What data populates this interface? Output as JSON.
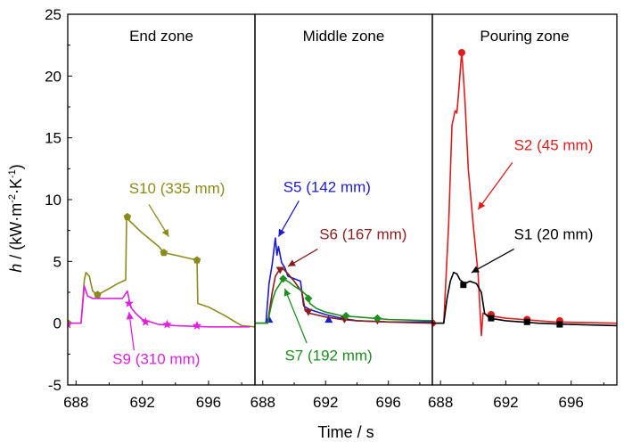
{
  "chart_data": {
    "type": "line",
    "ylabel_parts": {
      "h": "h",
      "rest": " / (kW·m",
      "exp1": "-2",
      "mid": "·K",
      "exp2": "-1",
      "close": ")"
    },
    "xlabel": "Time / s",
    "ylim": [
      -5,
      25
    ],
    "yticks": [
      -5,
      0,
      5,
      10,
      15,
      20,
      25
    ],
    "panels": [
      {
        "zone": "End zone",
        "xlim": [
          687.5,
          698.8
        ],
        "xticks": [
          688,
          692,
          696
        ],
        "series": [
          {
            "name": "S10 (335 mm)",
            "color": "#8b8b1c",
            "marker": "pentagon",
            "points": [
              [
                687.5,
                0
              ],
              [
                688.3,
                0
              ],
              [
                688.5,
                3.5
              ],
              [
                688.6,
                4.1
              ],
              [
                688.8,
                3.8
              ],
              [
                689.0,
                2.6
              ],
              [
                689.3,
                2.3
              ],
              [
                690.0,
                2.8
              ],
              [
                690.5,
                3.2
              ],
              [
                691.0,
                3.5
              ],
              [
                691.05,
                8.5
              ],
              [
                691.3,
                8.2
              ],
              [
                691.6,
                7.8
              ],
              [
                692.0,
                7.3
              ],
              [
                693.0,
                6.2
              ],
              [
                693.3,
                5.7
              ],
              [
                694.0,
                5.5
              ],
              [
                695.0,
                5.2
              ],
              [
                695.3,
                5.1
              ],
              [
                695.35,
                1.6
              ],
              [
                696.0,
                1.3
              ],
              [
                697.0,
                0.6
              ],
              [
                697.5,
                0.2
              ],
              [
                698.0,
                -0.2
              ],
              [
                698.8,
                -0.3
              ]
            ],
            "markers": [
              [
                687.5,
                0
              ],
              [
                689.3,
                2.3
              ],
              [
                691.1,
                8.6
              ],
              [
                693.3,
                5.7
              ],
              [
                695.3,
                5.1
              ]
            ],
            "label": "S10 (335 mm)",
            "label_pos": [
              691.2,
              10.5
            ],
            "arrow": [
              [
                692.4,
                9.6
              ],
              [
                693.6,
                7.0
              ]
            ]
          },
          {
            "name": "S9 (310 mm)",
            "color": "#e020e0",
            "marker": "star",
            "points": [
              [
                687.5,
                0
              ],
              [
                688.3,
                0
              ],
              [
                688.5,
                3.0
              ],
              [
                688.7,
                2.2
              ],
              [
                689.0,
                2.0
              ],
              [
                690.0,
                2.0
              ],
              [
                690.8,
                2.0
              ],
              [
                691.1,
                2.6
              ],
              [
                691.3,
                1.3
              ],
              [
                691.6,
                0.8
              ],
              [
                692.0,
                0.3
              ],
              [
                693.0,
                -0.1
              ],
              [
                694.0,
                -0.2
              ],
              [
                696.0,
                -0.3
              ],
              [
                697.0,
                -0.3
              ],
              [
                698.5,
                -0.3
              ]
            ],
            "markers": [
              [
                687.5,
                -0.1
              ],
              [
                691.2,
                1.6
              ],
              [
                692.2,
                0.1
              ],
              [
                693.5,
                -0.1
              ],
              [
                695.3,
                -0.2
              ]
            ],
            "label": "S9 (310 mm)",
            "label_pos": [
              690.2,
              -3.3
            ],
            "arrow": [
              [
                691.5,
                -2.2
              ],
              [
                691.2,
                0.9
              ]
            ]
          }
        ]
      },
      {
        "zone": "Middle zone",
        "xlim": [
          687.5,
          698.8
        ],
        "xticks": [
          688,
          692,
          696
        ],
        "series": [
          {
            "name": "S5 (142 mm)",
            "color": "#1c1cd0",
            "marker": "triangle",
            "points": [
              [
                687.5,
                0
              ],
              [
                688.2,
                0
              ],
              [
                688.4,
                3.2
              ],
              [
                688.6,
                4.8
              ],
              [
                688.8,
                6.9
              ],
              [
                688.9,
                5.5
              ],
              [
                689.0,
                6.2
              ],
              [
                689.2,
                4.9
              ],
              [
                689.4,
                4.5
              ],
              [
                689.6,
                3.8
              ],
              [
                690.0,
                3.6
              ],
              [
                690.4,
                3.4
              ],
              [
                690.6,
                1.4
              ],
              [
                691.0,
                1.1
              ],
              [
                692.0,
                0.7
              ],
              [
                693.0,
                0.4
              ],
              [
                694.0,
                0.2
              ],
              [
                696.0,
                0.1
              ],
              [
                698.8,
                0.1
              ]
            ],
            "markers": [
              [
                688.4,
                0.3
              ],
              [
                692.2,
                0.3
              ]
            ],
            "label": "S5 (142 mm)",
            "label_pos": [
              689.3,
              10.6
            ],
            "arrow": [
              [
                690.3,
                9.9
              ],
              [
                689.0,
                7.0
              ]
            ]
          },
          {
            "name": "S6 (167 mm)",
            "color": "#8b1c1c",
            "marker": "down-triangle",
            "points": [
              [
                687.5,
                0
              ],
              [
                688.3,
                0
              ],
              [
                688.6,
                2.5
              ],
              [
                688.8,
                3.8
              ],
              [
                689.0,
                4.2
              ],
              [
                689.3,
                4.4
              ],
              [
                689.6,
                4.0
              ],
              [
                690.0,
                3.4
              ],
              [
                690.5,
                2.5
              ],
              [
                690.7,
                1.0
              ],
              [
                691.0,
                0.8
              ],
              [
                692.0,
                0.5
              ],
              [
                693.0,
                0.3
              ],
              [
                694.0,
                0.2
              ],
              [
                696.0,
                0.1
              ],
              [
                698.8,
                0.0
              ]
            ],
            "markers": [
              [
                689.1,
                4.3
              ],
              [
                690.9,
                0.9
              ],
              [
                693.2,
                0.3
              ],
              [
                695.3,
                0.2
              ]
            ],
            "label": "S6 (167 mm)",
            "label_pos": [
              691.6,
              6.8
            ],
            "arrow": [
              [
                691.5,
                6.0
              ],
              [
                689.6,
                4.6
              ]
            ]
          },
          {
            "name": "S7 (192 mm)",
            "color": "#1e8f1e",
            "marker": "diamond",
            "points": [
              [
                687.5,
                0
              ],
              [
                688.3,
                0
              ],
              [
                688.6,
                1.8
              ],
              [
                688.8,
                2.6
              ],
              [
                689.0,
                3.0
              ],
              [
                689.3,
                3.6
              ],
              [
                689.7,
                3.3
              ],
              [
                690.0,
                3.0
              ],
              [
                690.5,
                2.6
              ],
              [
                690.9,
                2.1
              ],
              [
                691.0,
                1.6
              ],
              [
                691.4,
                1.2
              ],
              [
                692.0,
                0.9
              ],
              [
                693.0,
                0.6
              ],
              [
                694.0,
                0.5
              ],
              [
                695.0,
                0.4
              ],
              [
                696.0,
                0.3
              ],
              [
                698.8,
                0.2
              ]
            ],
            "markers": [
              [
                689.3,
                3.6
              ],
              [
                690.9,
                2.0
              ],
              [
                693.3,
                0.6
              ],
              [
                695.3,
                0.4
              ]
            ],
            "label": "S7 (192 mm)",
            "label_pos": [
              689.4,
              -3.0
            ],
            "arrow": [
              [
                690.8,
                -1.6
              ],
              [
                689.4,
                2.8
              ]
            ]
          }
        ]
      },
      {
        "zone": "Pouring zone",
        "xlim": [
          687.5,
          698.8
        ],
        "xticks": [
          688,
          692,
          696
        ],
        "series": [
          {
            "name": "S2 (45 mm)",
            "color": "#e01c1c",
            "marker": "circle",
            "points": [
              [
                687.5,
                0
              ],
              [
                688.2,
                0
              ],
              [
                688.5,
                8.0
              ],
              [
                688.7,
                16.0
              ],
              [
                688.9,
                17.2
              ],
              [
                689.0,
                17.0
              ],
              [
                689.1,
                18.5
              ],
              [
                689.3,
                22.0
              ],
              [
                689.5,
                18.0
              ],
              [
                689.7,
                12.5
              ],
              [
                690.0,
                8.0
              ],
              [
                690.3,
                4.0
              ],
              [
                690.5,
                -1.0
              ],
              [
                690.6,
                0.8
              ],
              [
                691.0,
                0.6
              ],
              [
                692.0,
                0.4
              ],
              [
                693.0,
                0.3
              ],
              [
                695.0,
                0.1
              ],
              [
                698.8,
                0.0
              ]
            ],
            "markers": [
              [
                687.5,
                0
              ],
              [
                689.3,
                21.9
              ],
              [
                691.1,
                0.7
              ],
              [
                693.3,
                0.3
              ],
              [
                695.3,
                0.2
              ]
            ],
            "label": "S2 (45 mm)",
            "label_pos": [
              692.5,
              14.0
            ],
            "arrow": [
              [
                692.4,
                13.0
              ],
              [
                690.3,
                9.2
              ]
            ]
          },
          {
            "name": "S1 (20 mm)",
            "color": "#000000",
            "marker": "square",
            "points": [
              [
                687.5,
                0
              ],
              [
                688.2,
                0
              ],
              [
                688.4,
                2.0
              ],
              [
                688.6,
                3.4
              ],
              [
                688.8,
                4.1
              ],
              [
                689.0,
                4.0
              ],
              [
                689.2,
                3.5
              ],
              [
                689.5,
                3.2
              ],
              [
                689.8,
                3.4
              ],
              [
                690.2,
                3.2
              ],
              [
                690.5,
                2.5
              ],
              [
                690.7,
                0.8
              ],
              [
                691.0,
                0.4
              ],
              [
                692.0,
                0.2
              ],
              [
                693.0,
                0.1
              ],
              [
                694.0,
                0.0
              ],
              [
                696.0,
                -0.1
              ],
              [
                698.8,
                -0.2
              ]
            ],
            "markers": [
              [
                689.4,
                3.1
              ],
              [
                691.1,
                0.4
              ],
              [
                693.3,
                0.1
              ],
              [
                695.3,
                -0.1
              ]
            ],
            "label": "S1 (20 mm)",
            "label_pos": [
              692.5,
              6.8
            ],
            "arrow": [
              [
                692.5,
                6.0
              ],
              [
                689.9,
                4.1
              ]
            ]
          }
        ]
      }
    ]
  }
}
